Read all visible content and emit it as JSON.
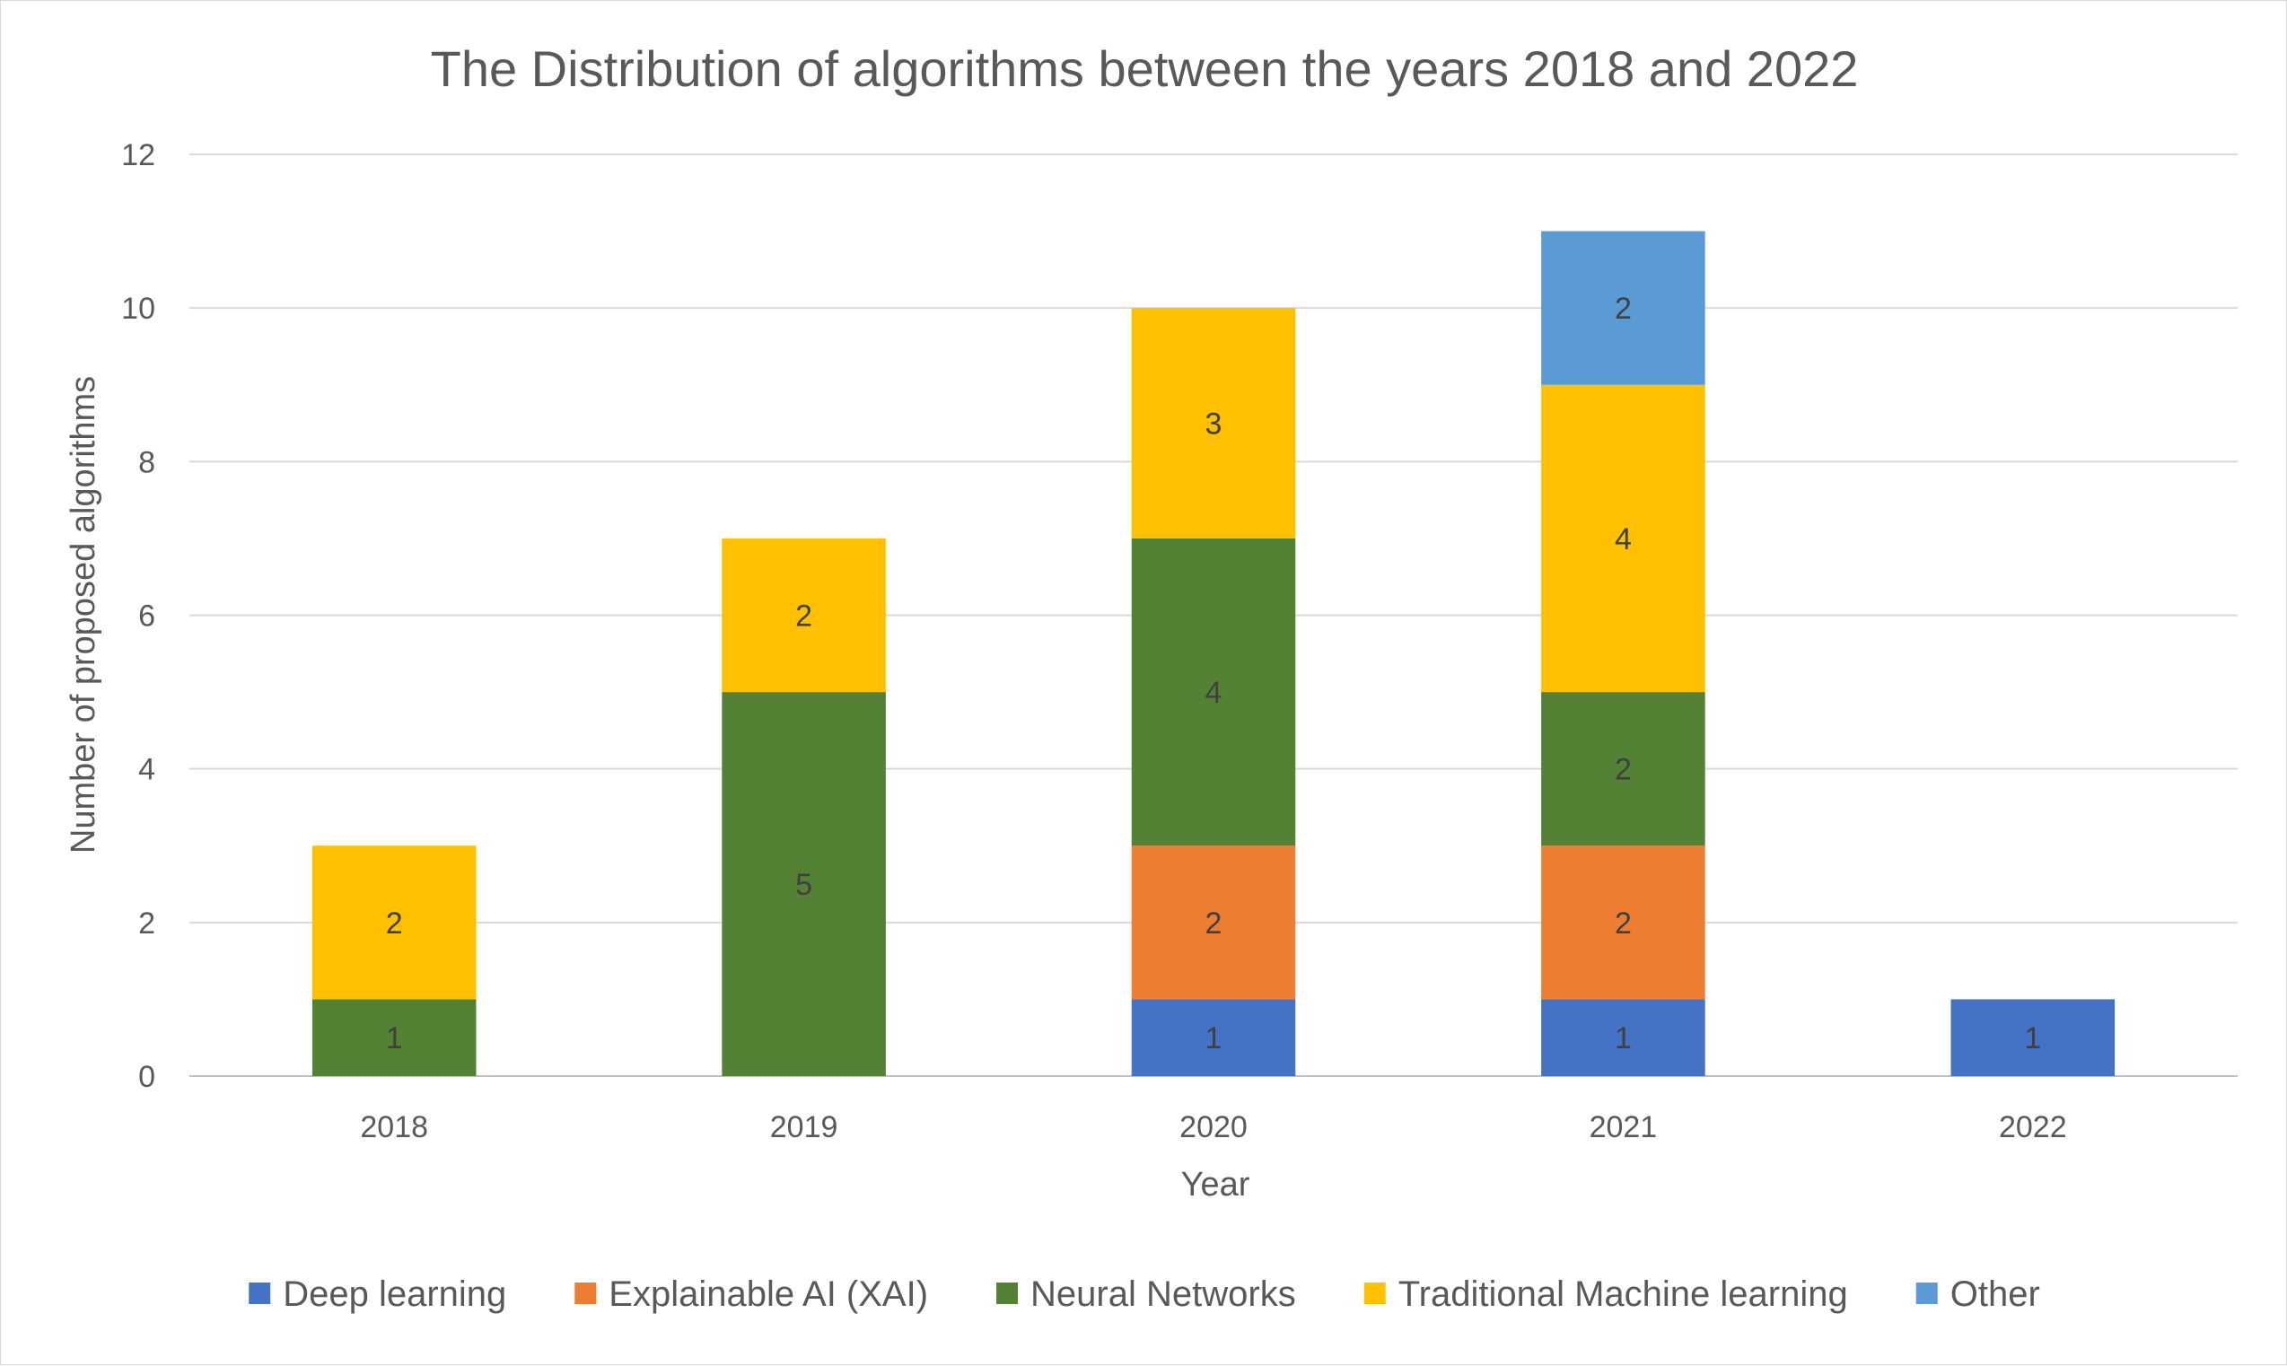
{
  "chart_data": {
    "type": "bar",
    "stacked": true,
    "title": "The Distribution of algorithms between the years 2018 and 2022",
    "xlabel": "Year",
    "ylabel": "Number of proposed algorithms",
    "categories": [
      "2018",
      "2019",
      "2020",
      "2021",
      "2022"
    ],
    "ylim": [
      0,
      12
    ],
    "yticks": [
      0,
      2,
      4,
      6,
      8,
      10,
      12
    ],
    "grid": true,
    "legend_position": "bottom",
    "series": [
      {
        "name": "Deep learning",
        "color": "#4472C4",
        "values": [
          0,
          0,
          1,
          1,
          1
        ]
      },
      {
        "name": "Explainable AI (XAI)",
        "color": "#ED7D31",
        "values": [
          0,
          0,
          2,
          2,
          0
        ]
      },
      {
        "name": "Neural Networks",
        "color": "#548235",
        "values": [
          1,
          5,
          4,
          2,
          0
        ]
      },
      {
        "name": "Traditional Machine learning",
        "color": "#FFC000",
        "values": [
          2,
          2,
          3,
          4,
          0
        ]
      },
      {
        "name": "Other",
        "color": "#5B9BD5",
        "values": [
          0,
          0,
          0,
          2,
          0
        ]
      }
    ]
  }
}
